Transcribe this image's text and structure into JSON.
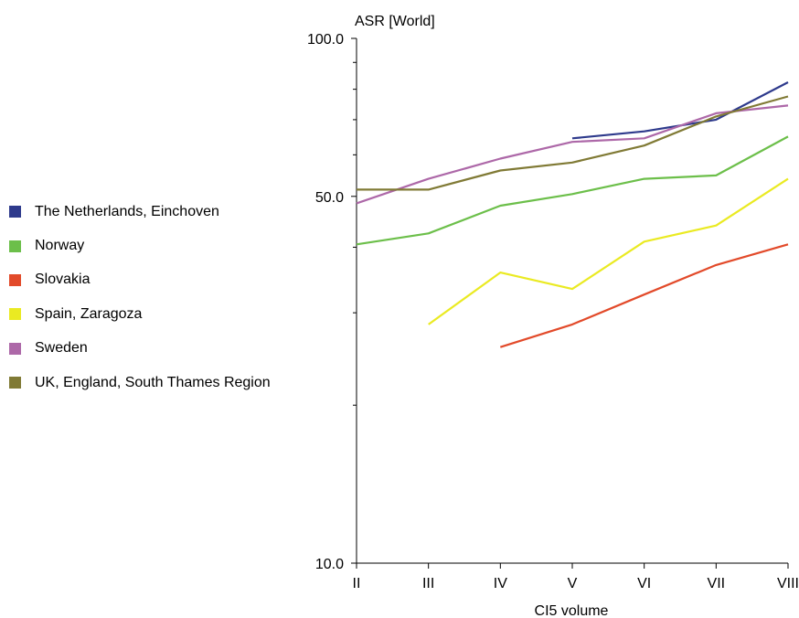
{
  "chart_data": {
    "type": "line",
    "ylabel": "ASR [World]",
    "xlabel": "CI5 volume",
    "y_scale": "log",
    "ylim": [
      10.0,
      100.0
    ],
    "y_tick_labels": [
      "100.0",
      "50.0",
      "10.0"
    ],
    "categories": [
      "II",
      "III",
      "IV",
      "V",
      "VI",
      "VII",
      "VIII"
    ],
    "grid": false,
    "legend_position": "left",
    "series": [
      {
        "name": "The Netherlands, Einchoven",
        "color": "#2e3a8c",
        "values": [
          null,
          null,
          null,
          64.5,
          66.5,
          70.0,
          82.5
        ]
      },
      {
        "name": "Norway",
        "color": "#6cbf4a",
        "values": [
          40.5,
          42.5,
          48.0,
          50.5,
          54.0,
          54.8,
          65.0
        ]
      },
      {
        "name": "Slovakia",
        "color": "#e24a2a",
        "values": [
          null,
          null,
          25.8,
          28.5,
          32.5,
          37.0,
          40.5
        ]
      },
      {
        "name": "Spain, Zaragoza",
        "color": "#eaea22",
        "values": [
          null,
          28.5,
          35.8,
          33.3,
          41.0,
          44.0,
          54.0
        ]
      },
      {
        "name": "Sweden",
        "color": "#ad68a8",
        "values": [
          48.5,
          54.0,
          59.0,
          63.5,
          64.5,
          72.0,
          74.5
        ]
      },
      {
        "name": "UK, England, South Thames Region",
        "color": "#807a35",
        "values": [
          51.5,
          51.5,
          56.0,
          58.0,
          62.5,
          71.0,
          77.5
        ]
      }
    ]
  }
}
